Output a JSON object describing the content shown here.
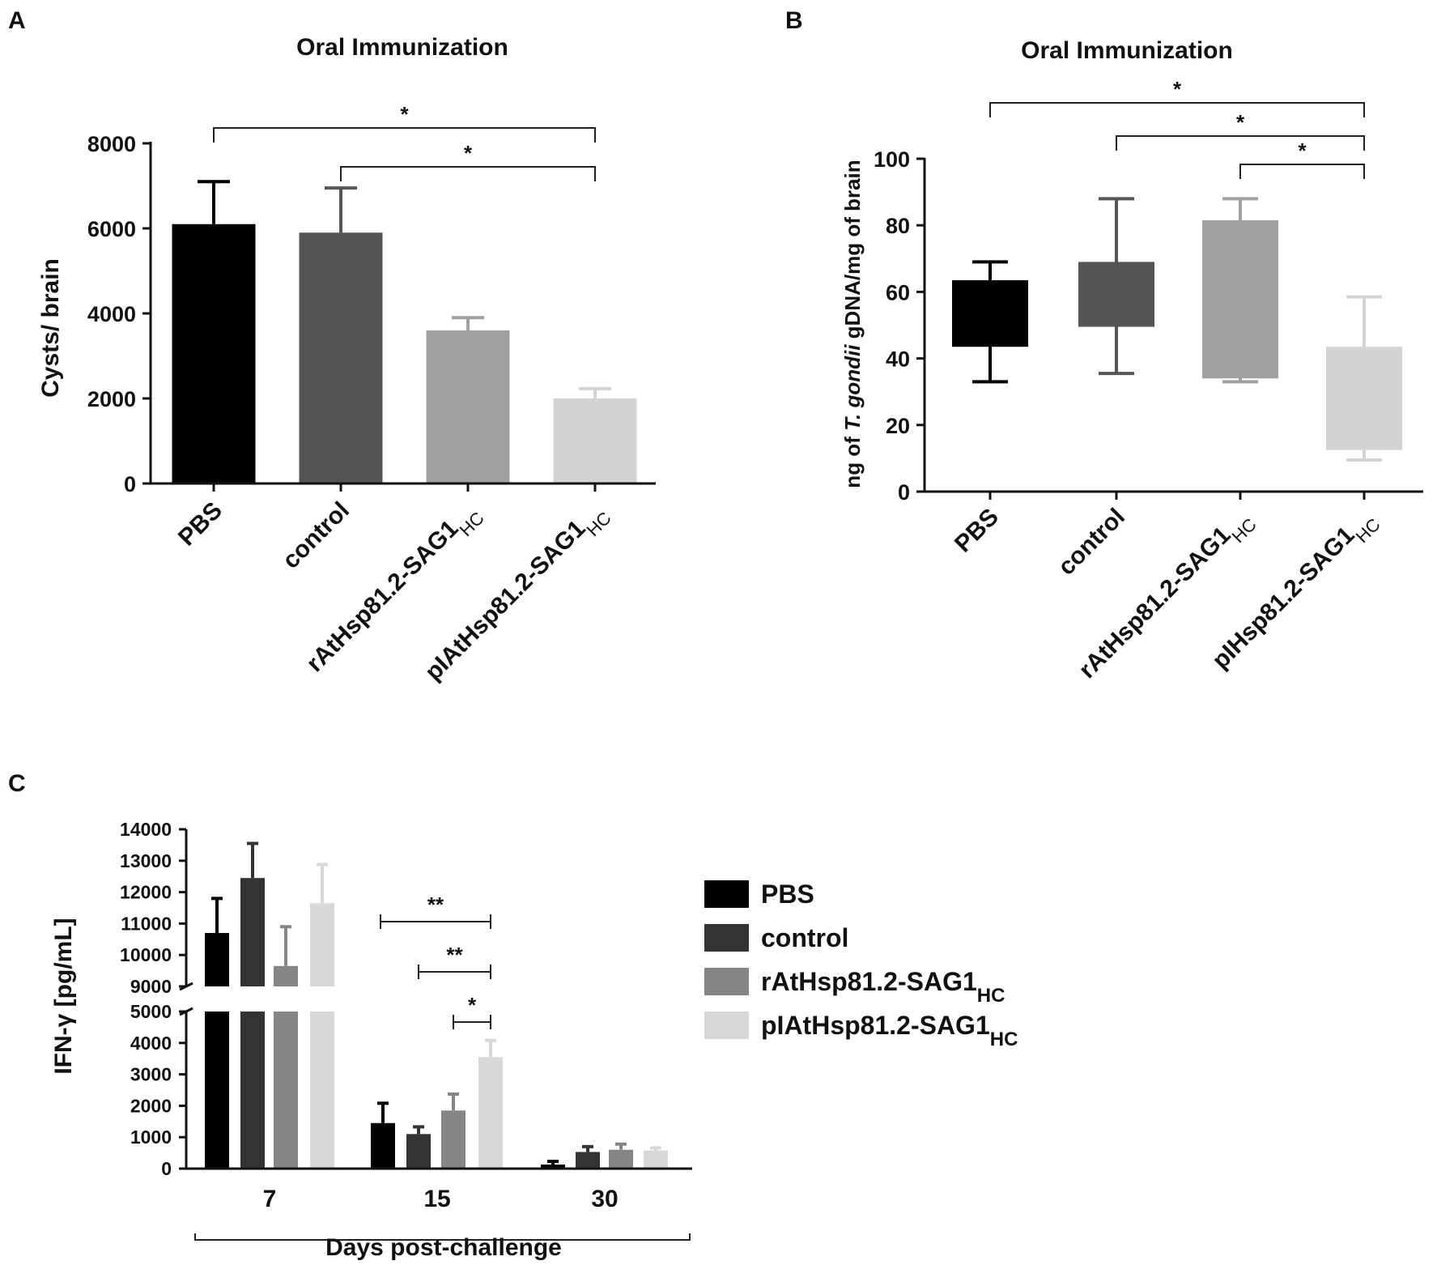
{
  "chart_data": [
    {
      "panel": "A",
      "type": "bar",
      "title": "Oral Immunization",
      "ylabel": "Cysts/ brain",
      "xlabel": "",
      "ylim": [
        0,
        8000
      ],
      "yticks": [
        "0",
        "2000",
        "4000",
        "6000",
        "8000"
      ],
      "ytick_values": [
        0,
        2000,
        4000,
        6000,
        8000
      ],
      "categories": [
        {
          "main": "PBS",
          "sub": ""
        },
        {
          "main": "control",
          "sub": ""
        },
        {
          "main": "rAtHsp81.2-SAG1",
          "sub": "HC"
        },
        {
          "main": "pIAtHsp81.2-SAG1",
          "sub": "HC"
        }
      ],
      "values": [
        6100,
        5900,
        3600,
        2000
      ],
      "error_upper": [
        7100,
        6950,
        3900,
        2230
      ],
      "colors": [
        "#000000",
        "#555555",
        "#a0a0a2",
        "#d3d3d3"
      ],
      "significance": [
        {
          "from": 0,
          "to": 3,
          "label": "*"
        },
        {
          "from": 1,
          "to": 3,
          "label": "*"
        }
      ]
    },
    {
      "panel": "B",
      "type": "box",
      "title": "Oral Immunization",
      "ylabel_prefix": "ng of ",
      "ylabel_italic": "T. gondii",
      "ylabel_suffix": " gDNA/mg of brain",
      "ylim": [
        0,
        100
      ],
      "yticks": [
        "0",
        "20",
        "40",
        "60",
        "80",
        "100"
      ],
      "ytick_values": [
        0,
        20,
        40,
        60,
        80,
        100
      ],
      "categories": [
        {
          "main": "PBS",
          "sub": ""
        },
        {
          "main": "control",
          "sub": ""
        },
        {
          "main": "rAtHsp81.2-SAG1",
          "sub": "HC"
        },
        {
          "main": "pIHsp81.2-SAG1",
          "sub": "HC"
        }
      ],
      "boxes": [
        {
          "min": 33,
          "q1": 43.5,
          "q3": 63.5,
          "max": 69
        },
        {
          "min": 35.5,
          "q1": 49.5,
          "q3": 69,
          "max": 88
        },
        {
          "min": 33,
          "q1": 34,
          "q3": 81.5,
          "max": 88
        },
        {
          "min": 9.5,
          "q1": 12.5,
          "q3": 43.5,
          "max": 58.5
        }
      ],
      "colors": [
        "#000000",
        "#555555",
        "#a0a0a2",
        "#d3d3d3"
      ],
      "significance": [
        {
          "from": 0,
          "to": 3,
          "label": "*"
        },
        {
          "from": 1,
          "to": 3,
          "label": "*"
        },
        {
          "from": 2,
          "to": 3,
          "label": "*"
        }
      ]
    },
    {
      "panel": "C",
      "type": "bar",
      "title": "",
      "ylabel": "IFN-γ [pg/mL]",
      "xlabel": "Days post-challenge",
      "y_break": [
        5000,
        9000
      ],
      "ylim": [
        0,
        14000
      ],
      "yticks_lower": [
        "0",
        "1000",
        "2000",
        "3000",
        "4000",
        "5000"
      ],
      "ytick_values_lower": [
        0,
        1000,
        2000,
        3000,
        4000,
        5000
      ],
      "yticks_upper": [
        "9000",
        "10000",
        "11000",
        "12000",
        "13000",
        "14000"
      ],
      "ytick_values_upper": [
        9000,
        10000,
        11000,
        12000,
        13000,
        14000
      ],
      "categories": [
        "7",
        "15",
        "30"
      ],
      "series": [
        {
          "name": "PBS",
          "sub": "",
          "color": "#000000",
          "values": [
            10700,
            1450,
            130
          ],
          "error_upper": [
            11800,
            2080,
            230
          ]
        },
        {
          "name": "control",
          "sub": "",
          "color": "#333333",
          "values": [
            12450,
            1100,
            530
          ],
          "error_upper": [
            13550,
            1330,
            700
          ]
        },
        {
          "name": "rAtHsp81.2-SAG1",
          "sub": "HC",
          "color": "#858585",
          "values": [
            9650,
            1850,
            600
          ],
          "error_upper": [
            10900,
            2370,
            780
          ]
        },
        {
          "name": "pIAtHsp81.2-SAG1",
          "sub": "HC",
          "color": "#d8d8d8",
          "values": [
            11650,
            3550,
            580
          ],
          "error_upper": [
            12880,
            4080,
            660
          ]
        }
      ],
      "significance": [
        {
          "group": "15",
          "from": 0,
          "to": 3,
          "label": "**"
        },
        {
          "group": "15",
          "from": 1,
          "to": 3,
          "label": "**"
        },
        {
          "group": "15",
          "from": 2,
          "to": 3,
          "label": "*"
        }
      ]
    }
  ]
}
